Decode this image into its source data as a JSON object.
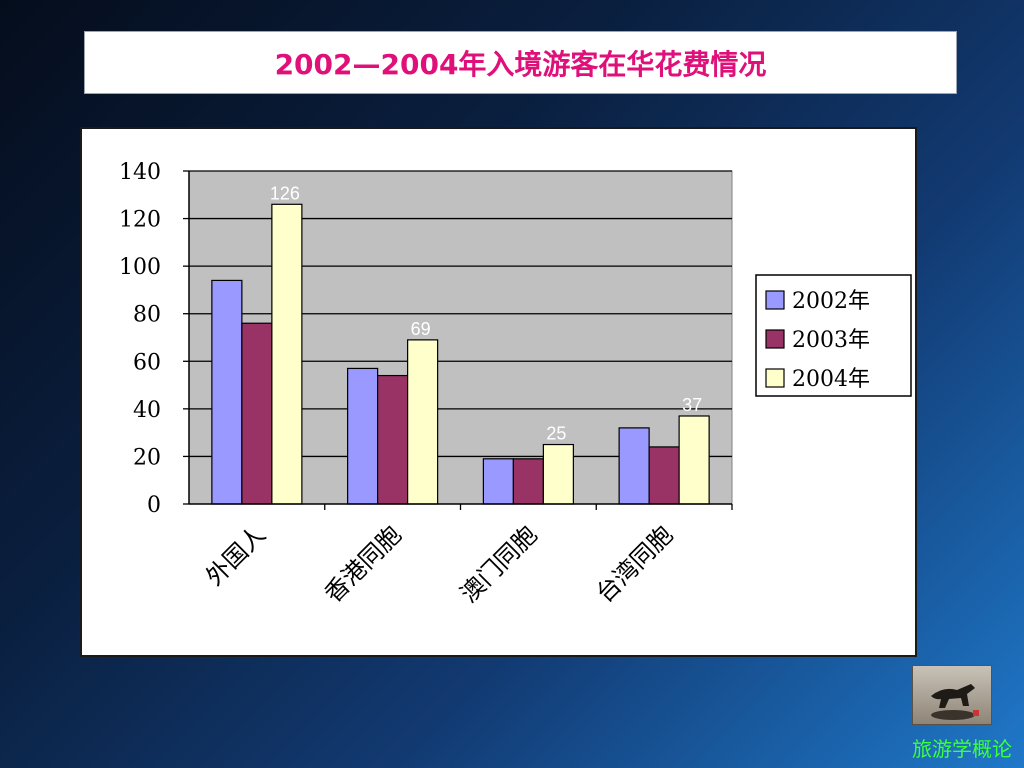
{
  "slide": {
    "title": "2002—2004年入境游客在华花费情况",
    "footer": "旅游学概论"
  },
  "chart_data": {
    "type": "bar",
    "categories": [
      "外国人",
      "香港同胞",
      "澳门同胞",
      "台湾同胞"
    ],
    "series": [
      {
        "name": "2002年",
        "color": "#9999ff",
        "values": [
          94,
          57,
          19,
          32
        ]
      },
      {
        "name": "2003年",
        "color": "#993366",
        "values": [
          76,
          54,
          19,
          24
        ]
      },
      {
        "name": "2004年",
        "color": "#ffffcc",
        "values": [
          126,
          69,
          25,
          37
        ]
      }
    ],
    "data_labels": [
      {
        "series": 2,
        "category": 0,
        "text": "126"
      },
      {
        "series": 2,
        "category": 1,
        "text": "69"
      },
      {
        "series": 2,
        "category": 2,
        "text": "25"
      },
      {
        "series": 2,
        "category": 3,
        "text": "37"
      }
    ],
    "y_ticks": [
      "0",
      "20",
      "40",
      "60",
      "80",
      "100",
      "120",
      "140"
    ],
    "ylim": [
      0,
      140
    ],
    "grid": true,
    "plot_background": "#c0c0c0",
    "legend_position": "right"
  }
}
